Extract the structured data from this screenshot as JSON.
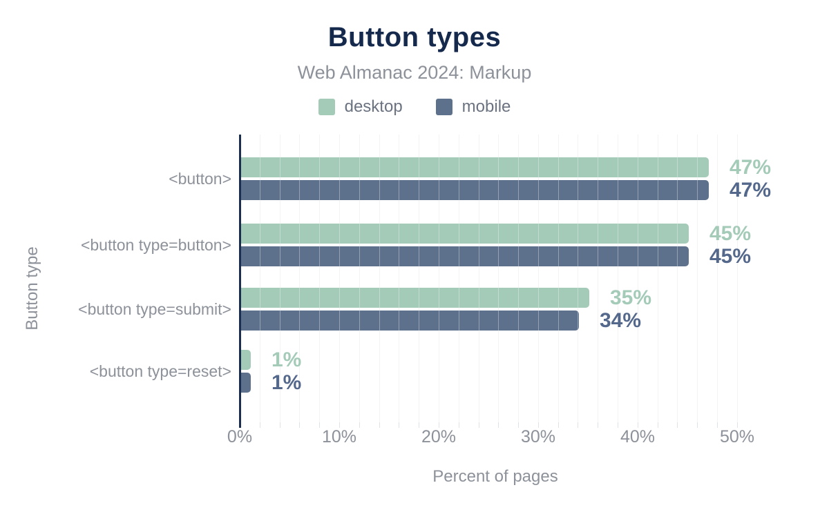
{
  "title": "Button types",
  "subtitle": "Web Almanac 2024: Markup",
  "colors": {
    "title_text": "#15294d",
    "muted_text": "#8d9199",
    "axis_line": "#1c2e4f",
    "desktop": "#a4cab8",
    "mobile": "#5e718c",
    "desktop_value_label": "#a4cab8",
    "mobile_value_label": "#54688c",
    "gridline": "#ededed",
    "tick": "#dfe2e6"
  },
  "chart_data": {
    "type": "bar",
    "orientation": "horizontal",
    "title": "Button types",
    "subtitle": "Web Almanac 2024: Markup",
    "categories": [
      "<button>",
      "<button type=button>",
      "<button type=submit>",
      "<button type=reset>"
    ],
    "series": [
      {
        "name": "desktop",
        "color": "#a4cab8",
        "label_color": "#a4cab8",
        "values": [
          47,
          45,
          35,
          1
        ],
        "labels": [
          "47%",
          "45%",
          "35%",
          "1%"
        ]
      },
      {
        "name": "mobile",
        "color": "#5e718c",
        "label_color": "#54688c",
        "values": [
          47,
          45,
          34,
          1
        ],
        "labels": [
          "47%",
          "45%",
          "34%",
          "1%"
        ]
      }
    ],
    "xlabel": "Percent of pages",
    "ylabel": "Button type",
    "xlim": [
      0,
      51.4
    ],
    "xticks": [
      0,
      10,
      20,
      30,
      40,
      50
    ],
    "xtick_labels": [
      "0%",
      "10%",
      "20%",
      "30%",
      "40%",
      "50%"
    ],
    "minor_grid_step_pct": 2,
    "grid": true,
    "legend_position": "top",
    "value_labels_shown": true
  }
}
